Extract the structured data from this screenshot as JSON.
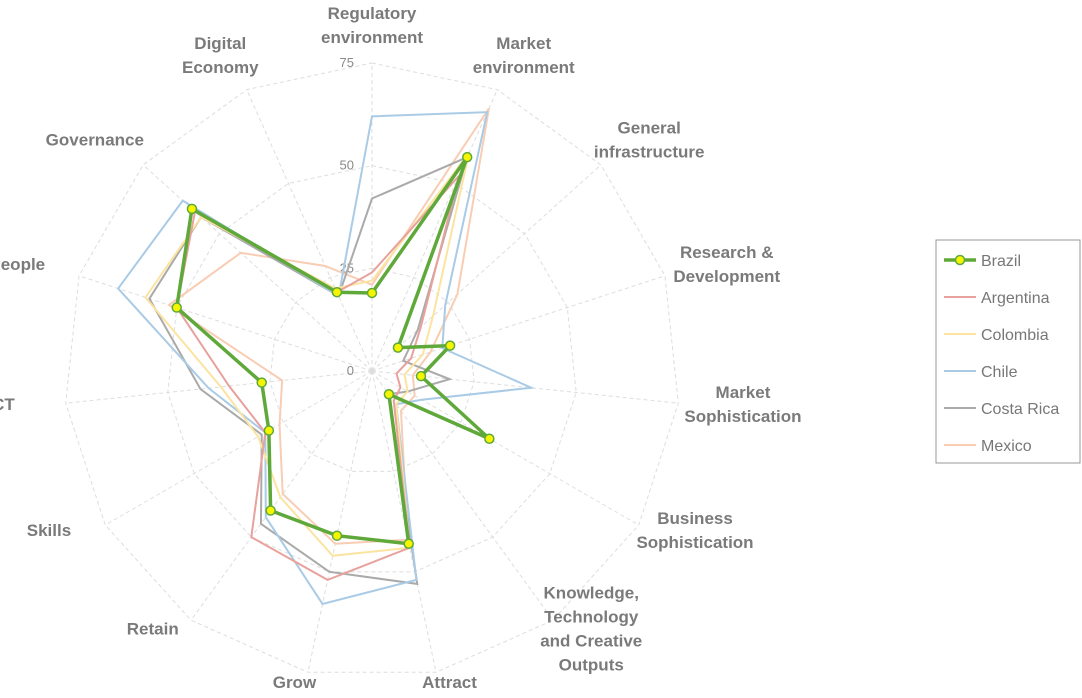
{
  "chart_data": {
    "type": "radar",
    "categories": [
      "Regulatory environment",
      "Market environment",
      "General infrastructure",
      "Research & Development",
      "Market Sophistication",
      "Business Sophistication",
      "Knowledge, Technology and Creative Outputs",
      "Attract",
      "Grow",
      "Retain",
      "Skills",
      "ICT",
      "People",
      "Governance",
      "Digital Economy"
    ],
    "series": [
      {
        "name": "Brazil",
        "color": "#5fa83a",
        "values": [
          19,
          57,
          8.5,
          20,
          12,
          33,
          7,
          43,
          41,
          42,
          29,
          27,
          50,
          59,
          21
        ]
      },
      {
        "name": "Argentina",
        "color": "#e8a19c",
        "values": [
          24,
          52,
          16,
          10,
          6,
          8,
          9,
          44,
          52,
          50,
          30,
          35,
          50,
          58,
          21
        ]
      },
      {
        "name": "Colombia",
        "color": "#fbe3a0",
        "values": [
          22,
          58,
          20,
          13,
          8,
          10,
          10,
          44,
          46,
          38,
          32,
          37,
          58,
          56,
          22
        ]
      },
      {
        "name": "Chile",
        "color": "#a9cbe6",
        "values": [
          62,
          69,
          24,
          18,
          39,
          14,
          10,
          52,
          58,
          44,
          30,
          40,
          65,
          62,
          20
        ]
      },
      {
        "name": "Costa Rica",
        "color": "#aaaaaa",
        "values": [
          42,
          57,
          15,
          8,
          19,
          10,
          7,
          53,
          50,
          46,
          31,
          42,
          57,
          56,
          20
        ]
      },
      {
        "name": "Mexico",
        "color": "#f8cdb4",
        "values": [
          21,
          70,
          28,
          15,
          10,
          12,
          12,
          42,
          43,
          37,
          26,
          22,
          52,
          43,
          28
        ]
      }
    ],
    "ylim": [
      0,
      75
    ],
    "yticks": [
      0,
      25,
      50,
      75
    ],
    "grid": true,
    "legend": "right"
  }
}
